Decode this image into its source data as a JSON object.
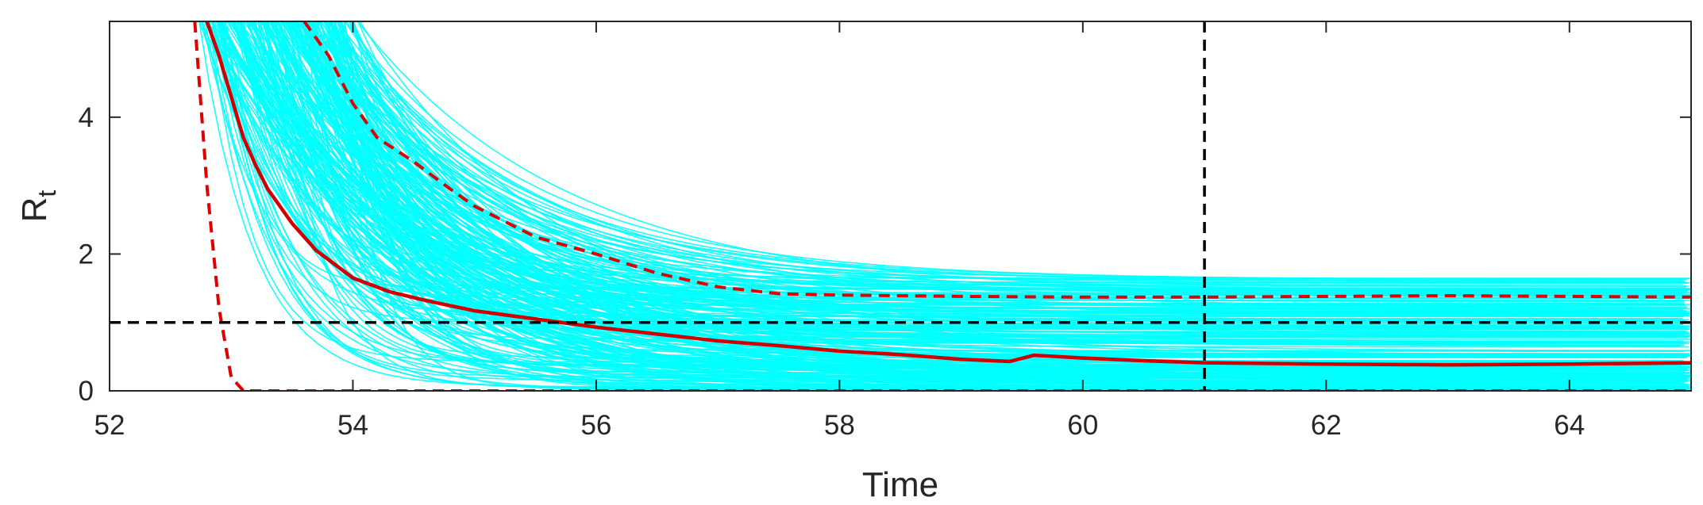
{
  "chart_data": {
    "type": "line",
    "title": "",
    "xlabel": "Time",
    "ylabel": "R",
    "ylabel_subscript": "t",
    "xlim": [
      52,
      65
    ],
    "ylim": [
      0,
      5.4
    ],
    "grid": false,
    "x_ticks": [
      "52",
      "54",
      "56",
      "58",
      "60",
      "62",
      "64"
    ],
    "y_ticks": [
      "0",
      "2",
      "4"
    ],
    "colors": {
      "ensemble": "#00FFFF",
      "median": "#D00000",
      "bounds": "#E00000",
      "reference": "#000000",
      "axes": "#262626"
    },
    "series": [
      {
        "style": "solid",
        "x": [
          52.8,
          52.9,
          53.0,
          53.1,
          53.2,
          53.3,
          53.5,
          53.7,
          54.0,
          54.3,
          54.6,
          55.0,
          55.5,
          56.0,
          56.5,
          57.0,
          57.5,
          58.0,
          58.5,
          59.0,
          59.4,
          59.6,
          60.0,
          60.5,
          61.0,
          62.0,
          63.0,
          64.0,
          65.0
        ],
        "values": [
          5.4,
          4.9,
          4.3,
          3.7,
          3.3,
          2.95,
          2.45,
          2.05,
          1.65,
          1.45,
          1.32,
          1.17,
          1.05,
          0.93,
          0.83,
          0.73,
          0.66,
          0.58,
          0.53,
          0.46,
          0.43,
          0.52,
          0.48,
          0.44,
          0.41,
          0.39,
          0.38,
          0.39,
          0.41
        ]
      },
      {
        "style": "dashed",
        "x": [
          53.6,
          53.8,
          54.0,
          54.2,
          54.5,
          54.8,
          55.0,
          55.5,
          56.0,
          56.5,
          57.0,
          57.5,
          58.0,
          59.0,
          60.0,
          61.0,
          62.0,
          63.0,
          64.0,
          65.0
        ],
        "values": [
          5.4,
          4.9,
          4.2,
          3.7,
          3.35,
          2.95,
          2.7,
          2.25,
          2.0,
          1.72,
          1.52,
          1.42,
          1.4,
          1.38,
          1.37,
          1.37,
          1.38,
          1.39,
          1.38,
          1.37
        ]
      },
      {
        "style": "dashed",
        "x": [
          52.7,
          52.8,
          52.9,
          53.0,
          53.1,
          54.0,
          56.0,
          58.0,
          60.0,
          62.0,
          64.0,
          65.0
        ],
        "values": [
          5.4,
          3.0,
          1.2,
          0.2,
          0.0,
          0.0,
          0.0,
          0.0,
          0.0,
          0.0,
          0.0,
          0.0
        ]
      }
    ],
    "reference_lines": [
      {
        "orientation": "horizontal",
        "value": 1,
        "style": "dashed"
      },
      {
        "orientation": "vertical",
        "value": 61,
        "style": "dashed"
      }
    ]
  }
}
